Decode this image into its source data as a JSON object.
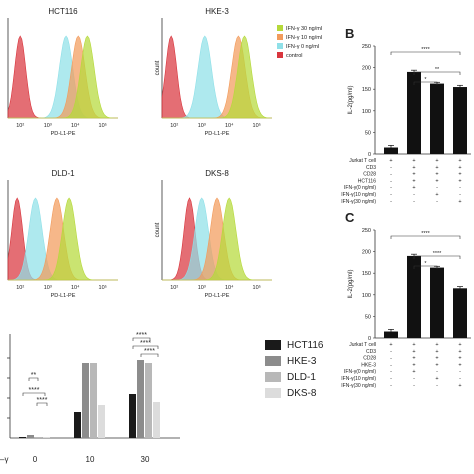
{
  "legend": {
    "items": [
      {
        "label": "IFN-γ 30 ng/ml",
        "color": "#b5d93a"
      },
      {
        "label": "IFN-γ 10 ng/ml",
        "color": "#f29b5c"
      },
      {
        "label": "IFN-γ 0 ng/ml",
        "color": "#8fe0e8"
      },
      {
        "label": "control",
        "color": "#d9363e"
      }
    ]
  },
  "histograms": [
    {
      "title": "HCT116",
      "xlabel": "PD-L1-PE",
      "ylabel": "",
      "peaks": {
        "control": 1.4,
        "ifn0": 2.9,
        "ifn10": 3.3,
        "ifn30": 3.6
      }
    },
    {
      "title": "HKE-3",
      "xlabel": "PD-L1-PE",
      "ylabel": "count",
      "peaks": {
        "control": 1.3,
        "ifn0": 2.4,
        "ifn10": 3.5,
        "ifn30": 3.7
      }
    },
    {
      "title": "DLD-1",
      "xlabel": "PD-L1-PE",
      "ylabel": "",
      "peaks": {
        "control": 1.3,
        "ifn0": 1.9,
        "ifn10": 2.6,
        "ifn30": 3.0
      }
    },
    {
      "title": "DKS-8",
      "xlabel": "PD-L1-PE",
      "ylabel": "count",
      "peaks": {
        "control": 1.9,
        "ifn0": 2.3,
        "ifn10": 2.8,
        "ifn30": 3.2
      }
    }
  ],
  "hist_ticks": [
    "10²",
    "10³",
    "10⁴",
    "10⁵"
  ],
  "panels": {
    "B": "B",
    "C": "C"
  },
  "bottom_chart": {
    "xaxis_label": "–γ",
    "categories": [
      "0",
      "10",
      "30"
    ],
    "series": [
      {
        "name": "HCT116",
        "color": "#1a1a1a",
        "values": [
          0.05,
          1.3,
          2.2
        ]
      },
      {
        "name": "HKE-3",
        "color": "#8c8c8c",
        "values": [
          0.15,
          3.75,
          3.9
        ]
      },
      {
        "name": "DLD-1",
        "color": "#b8b8b8",
        "values": [
          0.05,
          3.75,
          3.75
        ]
      },
      {
        "name": "DKS-8",
        "color": "#dcdcdc",
        "values": [
          0.05,
          1.65,
          1.8
        ]
      }
    ],
    "ymax": 5,
    "significance": [
      "**",
      "****",
      "****",
      "****",
      "****",
      "****"
    ]
  },
  "chart_data": [
    {
      "type": "bar",
      "title": "B",
      "ylabel": "IL-2(pg/ml)",
      "categories": [
        "1",
        "2",
        "3",
        "4"
      ],
      "values": [
        15,
        190,
        163,
        155
      ],
      "errors": [
        5,
        4,
        3,
        4
      ],
      "ylim": [
        0,
        250
      ],
      "yticks": [
        "0",
        "50",
        "100",
        "150",
        "200",
        "250"
      ],
      "significance": [
        "*",
        "**",
        "****"
      ],
      "conditions": [
        {
          "label": "Jurkat T cell",
          "marks": [
            "+",
            "+",
            "+",
            "+"
          ]
        },
        {
          "label": "CD3",
          "marks": [
            "-",
            "+",
            "+",
            "+"
          ]
        },
        {
          "label": "CD28",
          "marks": [
            "-",
            "+",
            "+",
            "+"
          ]
        },
        {
          "label": "HCT116",
          "marks": [
            "-",
            "+",
            "+",
            "+"
          ]
        },
        {
          "label": "IFN-γ(0 ng/ml)",
          "marks": [
            "-",
            "+",
            "-",
            "-"
          ]
        },
        {
          "label": "IFN-γ(10 ng/ml)",
          "marks": [
            "-",
            "-",
            "+",
            "-"
          ]
        },
        {
          "label": "IFN-γ(30 ng/ml)",
          "marks": [
            "-",
            "-",
            "-",
            "+"
          ]
        }
      ]
    },
    {
      "type": "bar",
      "title": "C",
      "ylabel": "IL-2(pg/ml)",
      "categories": [
        "1",
        "2",
        "3",
        "4"
      ],
      "values": [
        15,
        190,
        163,
        115
      ],
      "errors": [
        5,
        4,
        3,
        4
      ],
      "ylim": [
        0,
        250
      ],
      "yticks": [
        "0",
        "50",
        "100",
        "150",
        "200",
        "250"
      ],
      "significance": [
        "*",
        "****",
        "****"
      ],
      "conditions": [
        {
          "label": "Jurkat T cell",
          "marks": [
            "+",
            "+",
            "+",
            "+"
          ]
        },
        {
          "label": "CD3",
          "marks": [
            "-",
            "+",
            "+",
            "+"
          ]
        },
        {
          "label": "CD28",
          "marks": [
            "-",
            "+",
            "+",
            "+"
          ]
        },
        {
          "label": "HKE-3",
          "marks": [
            "-",
            "+",
            "+",
            "+"
          ]
        },
        {
          "label": "IFN-γ(0 ng/ml)",
          "marks": [
            "-",
            "+",
            "-",
            "-"
          ]
        },
        {
          "label": "IFN-γ(10 ng/ml)",
          "marks": [
            "-",
            "-",
            "+",
            "-"
          ]
        },
        {
          "label": "IFN-γ(30 ng/ml)",
          "marks": [
            "-",
            "-",
            "-",
            "+"
          ]
        }
      ]
    }
  ]
}
